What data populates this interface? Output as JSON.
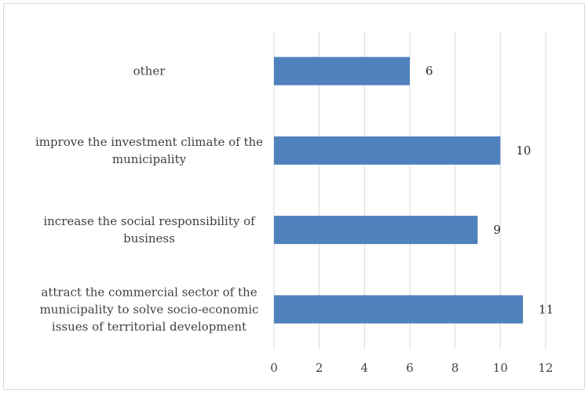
{
  "chart_data": {
    "type": "bar",
    "orientation": "horizontal",
    "categories": [
      [
        "attract the commercial sector of the",
        "municipality to solve socio-economic",
        "issues of territorial development"
      ],
      [
        "increase the social responsibility of",
        "business"
      ],
      [
        "improve the investment climate of the",
        "municipality"
      ],
      [
        "other"
      ]
    ],
    "values": [
      11,
      9,
      10,
      6
    ],
    "xlim": [
      0,
      12
    ],
    "xticks": [
      0,
      2,
      4,
      6,
      8,
      10,
      12
    ],
    "title": "",
    "xlabel": "",
    "ylabel": "",
    "grid": "vertical",
    "legend": "none",
    "data_labels": true,
    "colors": {
      "bar": "#4f81bd",
      "grid": "#d9d9d9",
      "text": "#404040"
    }
  }
}
